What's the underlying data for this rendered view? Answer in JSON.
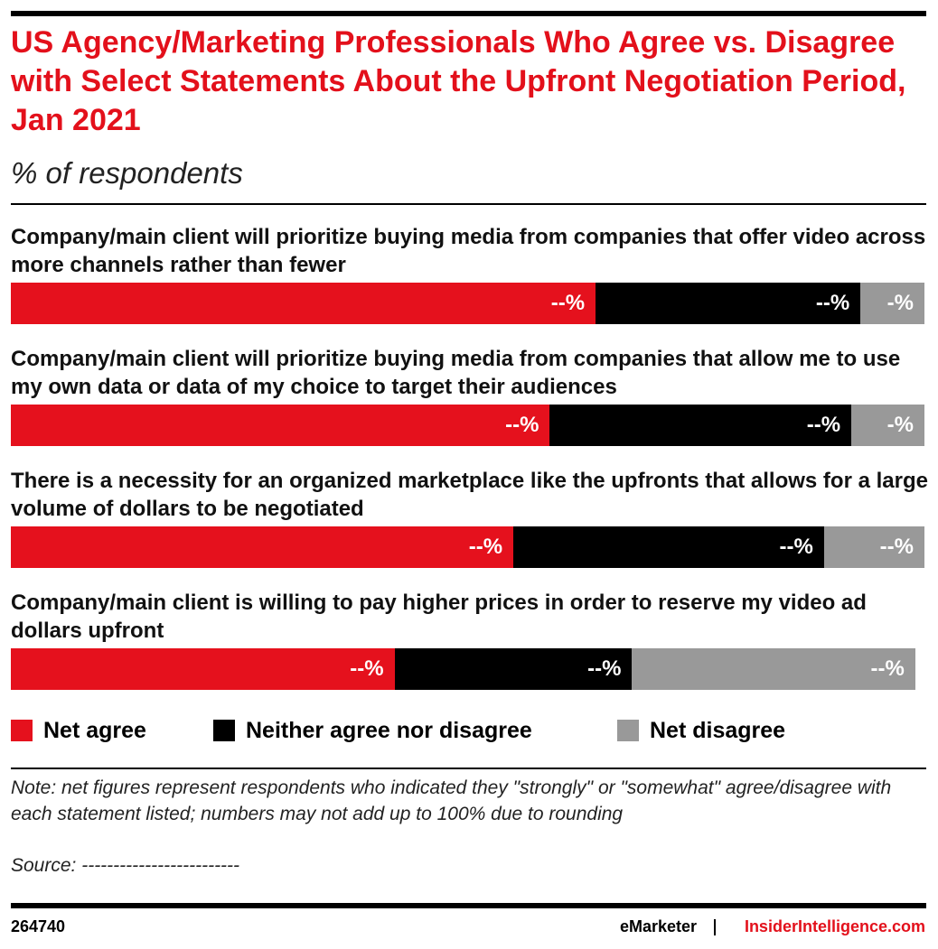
{
  "chart_data": {
    "type": "bar",
    "orientation": "horizontal",
    "stacked": true,
    "title": "US Agency/Marketing Professionals Who Agree vs. Disagree with Select Statements About the Upfront Negotiation Period, Jan 2021",
    "subtitle": "% of respondents",
    "categories": [
      "Company/main client will prioritize buying media from companies that offer video across more channels rather than fewer",
      "Company/main client will prioritize buying media from companies that allow me to use my own data or data of my choice to target their audiences",
      "There is a necessity for an organized marketplace like the upfronts that allows for a large volume of dollars to be negotiated",
      "Company/main client is willing to pay higher prices in order to reserve my video ad dollars upfront"
    ],
    "xlim": [
      0,
      100
    ],
    "series": [
      {
        "name": "Net agree",
        "color": "#e5111d",
        "values": [
          64,
          59,
          55,
          42
        ],
        "value_labels": [
          "--%",
          "--%",
          "--%",
          "--%"
        ]
      },
      {
        "name": "Neither agree nor disagree",
        "color": "#000000",
        "values": [
          29,
          33,
          34,
          26
        ],
        "value_labels": [
          "--%",
          "--%",
          "--%",
          "--%"
        ]
      },
      {
        "name": "Net disagree",
        "color": "#999999",
        "values": [
          7,
          8,
          11,
          31
        ],
        "value_labels": [
          "-%",
          "-%",
          "--%",
          "--%"
        ]
      }
    ],
    "note": "Note: net figures represent respondents who indicated they \"strongly\" or \"somewhat\" agree/disagree with each statement listed; numbers may not add up to 100% due to rounding",
    "source": "Source: -------------------------",
    "chart_id": "264740",
    "brand": "eMarketer",
    "website": "InsiderIntelligence.com"
  }
}
